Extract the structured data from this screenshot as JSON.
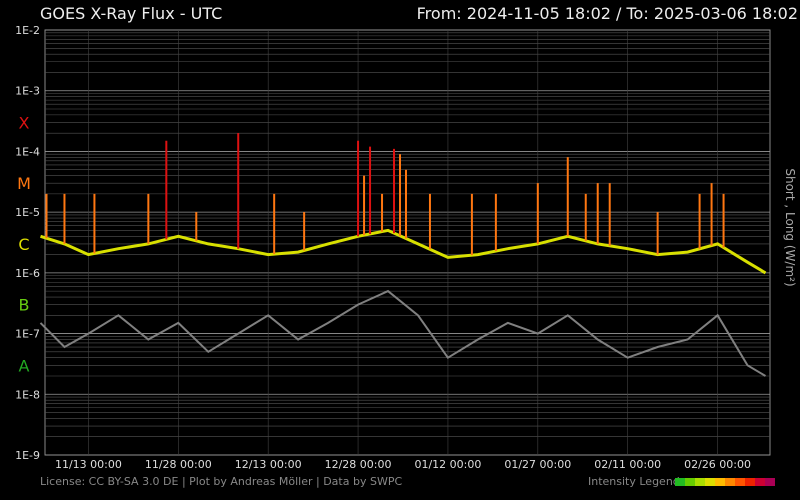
{
  "header": {
    "title": "GOES X-Ray Flux - UTC",
    "range": "From: 2024-11-05 18:02  /  To: 2025-03-06 18:02"
  },
  "footer": {
    "license": "License: CC BY-SA 3.0 DE | Plot by Andreas Möller | Data by SWPC",
    "legend_label": "Intensity Legend",
    "legend_colors": [
      "#22bb22",
      "#66cc00",
      "#aadd00",
      "#dddd00",
      "#ffbb00",
      "#ff8800",
      "#ff5500",
      "#ee2200",
      "#cc0033",
      "#aa0055"
    ]
  },
  "chart_data": {
    "type": "line",
    "x_range": [
      "2024-11-05 18:02",
      "2025-03-06 18:02"
    ],
    "yscale": "log",
    "ylim": [
      1e-09,
      0.01
    ],
    "ylabel": "Short , Long (W/m²)",
    "ytick_labels": [
      "1E-2",
      "1E-3",
      "1E-4",
      "1E-5",
      "1E-6",
      "1E-7",
      "1E-8",
      "1E-9"
    ],
    "xticks": [
      {
        "date": "2024-11-13 00:00",
        "label": "11/13 00:00"
      },
      {
        "date": "2024-11-28 00:00",
        "label": "11/28 00:00"
      },
      {
        "date": "2024-12-13 00:00",
        "label": "12/13 00:00"
      },
      {
        "date": "2024-12-28 00:00",
        "label": "12/28 00:00"
      },
      {
        "date": "2025-01-12 00:00",
        "label": "01/12 00:00"
      },
      {
        "date": "2025-01-27 00:00",
        "label": "01/27 00:00"
      },
      {
        "date": "2025-02-11 00:00",
        "label": "02/11 00:00"
      },
      {
        "date": "2025-02-26 00:00",
        "label": "02/26 00:00"
      }
    ],
    "flare_classes": [
      {
        "label": "X",
        "value": 0.0003,
        "color": "#dd1111"
      },
      {
        "label": "M",
        "value": 3e-05,
        "color": "#ff7711"
      },
      {
        "label": "C",
        "value": 3e-06,
        "color": "#dddd00"
      },
      {
        "label": "B",
        "value": 3e-07,
        "color": "#66cc11"
      },
      {
        "label": "A",
        "value": 3e-08,
        "color": "#22aa22"
      }
    ],
    "grid": true,
    "series": [
      {
        "name": "Long",
        "color": "#d8e000",
        "x": [
          "2024-11-05",
          "2024-11-09",
          "2024-11-13",
          "2024-11-18",
          "2024-11-23",
          "2024-11-28",
          "2024-12-03",
          "2024-12-08",
          "2024-12-13",
          "2024-12-18",
          "2024-12-23",
          "2024-12-28",
          "2025-01-02",
          "2025-01-07",
          "2025-01-12",
          "2025-01-17",
          "2025-01-22",
          "2025-01-27",
          "2025-02-01",
          "2025-02-06",
          "2025-02-11",
          "2025-02-16",
          "2025-02-21",
          "2025-02-26",
          "2025-03-03",
          "2025-03-06"
        ],
        "y": [
          4e-06,
          3e-06,
          2e-06,
          2.5e-06,
          3e-06,
          4e-06,
          3e-06,
          2.5e-06,
          2e-06,
          2.2e-06,
          3e-06,
          4e-06,
          5e-06,
          3e-06,
          1.8e-06,
          2e-06,
          2.5e-06,
          3e-06,
          4e-06,
          3e-06,
          2.5e-06,
          2e-06,
          2.2e-06,
          3e-06,
          1.5e-06,
          1e-06
        ]
      },
      {
        "name": "Short",
        "color": "#808080",
        "x": [
          "2024-11-05",
          "2024-11-09",
          "2024-11-13",
          "2024-11-18",
          "2024-11-23",
          "2024-11-28",
          "2024-12-03",
          "2024-12-08",
          "2024-12-13",
          "2024-12-18",
          "2024-12-23",
          "2024-12-28",
          "2025-01-02",
          "2025-01-07",
          "2025-01-12",
          "2025-01-17",
          "2025-01-22",
          "2025-01-27",
          "2025-02-01",
          "2025-02-06",
          "2025-02-11",
          "2025-02-16",
          "2025-02-21",
          "2025-02-26",
          "2025-03-03",
          "2025-03-06"
        ],
        "y": [
          1.5e-07,
          6e-08,
          1e-07,
          2e-07,
          8e-08,
          1.5e-07,
          5e-08,
          1e-07,
          2e-07,
          8e-08,
          1.5e-07,
          3e-07,
          5e-07,
          2e-07,
          4e-08,
          8e-08,
          1.5e-07,
          1e-07,
          2e-07,
          8e-08,
          4e-08,
          6e-08,
          8e-08,
          2e-07,
          3e-08,
          2e-08
        ]
      }
    ],
    "flare_peaks": [
      {
        "date": "2024-11-06",
        "value": 2e-05
      },
      {
        "date": "2024-11-09",
        "value": 2e-05
      },
      {
        "date": "2024-11-14",
        "value": 2e-05
      },
      {
        "date": "2024-11-23",
        "value": 2e-05
      },
      {
        "date": "2024-11-26",
        "value": 0.00015
      },
      {
        "date": "2024-12-01",
        "value": 1e-05
      },
      {
        "date": "2024-12-08",
        "value": 0.0002
      },
      {
        "date": "2024-12-14",
        "value": 2e-05
      },
      {
        "date": "2024-12-19",
        "value": 1e-05
      },
      {
        "date": "2024-12-28",
        "value": 0.00015
      },
      {
        "date": "2024-12-29",
        "value": 4e-05
      },
      {
        "date": "2024-12-30",
        "value": 0.00012
      },
      {
        "date": "2025-01-01",
        "value": 2e-05
      },
      {
        "date": "2025-01-03",
        "value": 0.00011
      },
      {
        "date": "2025-01-04",
        "value": 9e-05
      },
      {
        "date": "2025-01-05",
        "value": 5e-05
      },
      {
        "date": "2025-01-09",
        "value": 2e-05
      },
      {
        "date": "2025-01-16",
        "value": 2e-05
      },
      {
        "date": "2025-01-20",
        "value": 2e-05
      },
      {
        "date": "2025-01-27",
        "value": 3e-05
      },
      {
        "date": "2025-02-01",
        "value": 8e-05
      },
      {
        "date": "2025-02-04",
        "value": 2e-05
      },
      {
        "date": "2025-02-06",
        "value": 3e-05
      },
      {
        "date": "2025-02-08",
        "value": 3e-05
      },
      {
        "date": "2025-02-16",
        "value": 1e-05
      },
      {
        "date": "2025-02-23",
        "value": 2e-05
      },
      {
        "date": "2025-02-25",
        "value": 3e-05
      },
      {
        "date": "2025-02-27",
        "value": 2e-05
      }
    ]
  }
}
